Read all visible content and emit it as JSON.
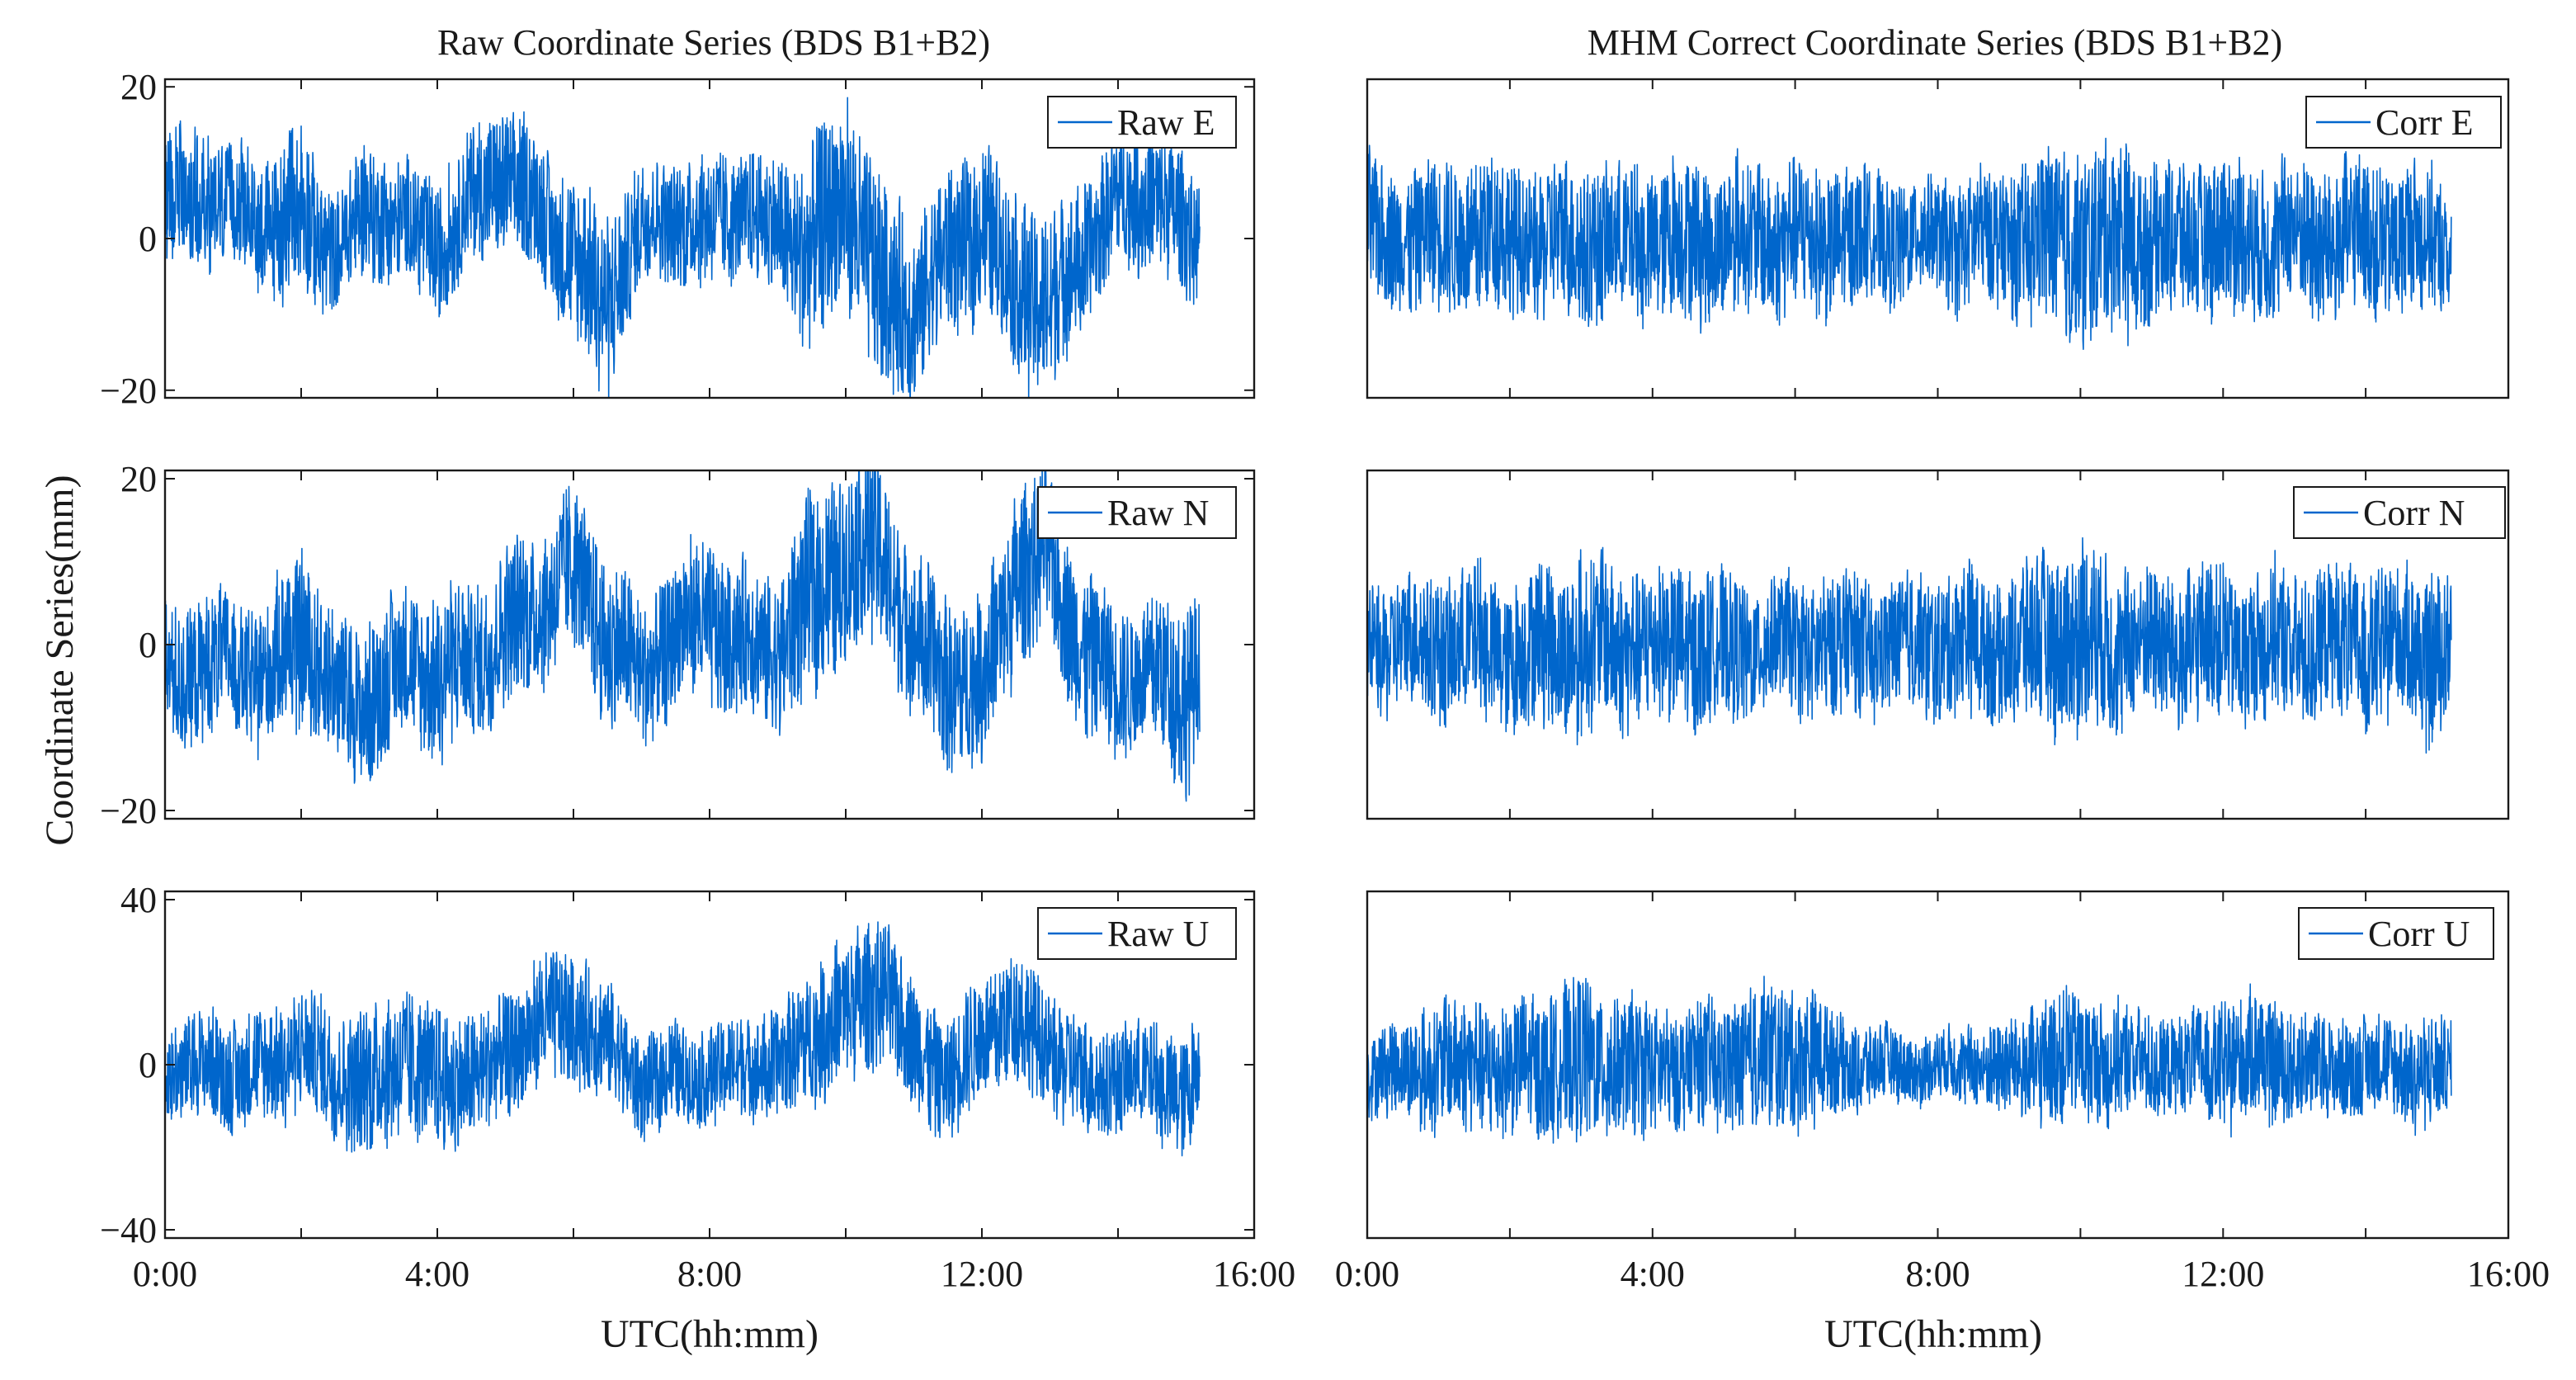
{
  "figure": {
    "ylabel": "Coordinate Series(mm)",
    "xlabel": "UTC(hh:mm)",
    "x_ticks": [
      "0:00",
      "4:00",
      "8:00",
      "12:00",
      "16:00"
    ]
  },
  "chart_data": [
    {
      "type": "line",
      "title": "Raw Coordinate Series (BDS B1+B2)",
      "xlabel": "",
      "ylabel": "",
      "xlim": [
        0,
        16
      ],
      "ylim": [
        -21,
        21
      ],
      "yticks": [
        -20,
        0,
        20
      ],
      "ytick_labels": [
        "−20",
        "0",
        "20"
      ],
      "grid": false,
      "legend_position": "top-right",
      "series": [
        {
          "name": "Raw E",
          "color": "#0066cc",
          "x_hours": [
            0.0,
            0.5,
            1.0,
            1.5,
            2.0,
            2.5,
            3.0,
            3.5,
            4.0,
            4.5,
            5.0,
            5.5,
            6.0,
            6.5,
            7.0,
            7.5,
            8.0,
            8.5,
            9.0,
            9.5,
            10.0,
            10.5,
            11.0,
            11.5,
            12.0,
            12.5,
            13.0,
            13.5,
            14.0,
            14.5,
            15.0,
            15.2
          ],
          "y_mid": [
            5,
            6,
            4,
            2,
            3,
            -2,
            4,
            2,
            -1,
            5,
            8,
            4,
            -3,
            -9,
            2,
            3,
            2,
            4,
            1,
            -2,
            5,
            -6,
            -10,
            -2,
            2,
            -6,
            -9,
            -2,
            5,
            6,
            1,
            0
          ],
          "y_spread": [
            8,
            10,
            8,
            9,
            12,
            8,
            9,
            8,
            9,
            9,
            10,
            9,
            11,
            12,
            8,
            8,
            9,
            8,
            9,
            14,
            14,
            14,
            12,
            11,
            11,
            12,
            13,
            10,
            9,
            10,
            9,
            8
          ]
        }
      ]
    },
    {
      "type": "line",
      "title": "MHM Correct Coordinate Series (BDS B1+B2)",
      "xlabel": "",
      "ylabel": "",
      "xlim": [
        0,
        16
      ],
      "ylim": [
        -21,
        21
      ],
      "yticks": [],
      "grid": false,
      "legend_position": "top-right",
      "series": [
        {
          "name": "Corr E",
          "color": "#0066cc",
          "x_hours": [
            0.0,
            0.5,
            1.0,
            1.5,
            2.0,
            2.5,
            3.0,
            3.5,
            4.0,
            4.5,
            5.0,
            5.5,
            6.0,
            6.5,
            7.0,
            7.5,
            8.0,
            8.5,
            9.0,
            9.5,
            10.0,
            10.5,
            11.0,
            11.5,
            12.0,
            12.5,
            13.0,
            13.5,
            14.0,
            14.5,
            15.0,
            15.2
          ],
          "y_mid": [
            1,
            0,
            0,
            1,
            0,
            -1,
            0,
            -1,
            0,
            0,
            0,
            0,
            0,
            0,
            0,
            0,
            0,
            0,
            0,
            0,
            -1,
            0,
            0,
            0,
            0,
            0,
            0,
            0,
            0,
            0,
            0,
            -1
          ],
          "y_spread": [
            10,
            9,
            10,
            11,
            10,
            10,
            11,
            10,
            10,
            11,
            10,
            10,
            10,
            10,
            9,
            8,
            8,
            9,
            9,
            12,
            13,
            13,
            11,
            10,
            11,
            10,
            10,
            11,
            10,
            10,
            9,
            8
          ]
        }
      ]
    },
    {
      "type": "line",
      "title": "",
      "xlabel": "",
      "ylabel": "",
      "xlim": [
        0,
        16
      ],
      "ylim": [
        -21,
        21
      ],
      "yticks": [
        -20,
        0,
        20
      ],
      "ytick_labels": [
        "−20",
        "0",
        "20"
      ],
      "grid": false,
      "legend_position": "top-right",
      "series": [
        {
          "name": "Raw N",
          "color": "#0066cc",
          "x_hours": [
            0.0,
            0.5,
            1.0,
            1.5,
            2.0,
            2.5,
            3.0,
            3.5,
            4.0,
            4.5,
            5.0,
            5.5,
            6.0,
            6.5,
            7.0,
            7.5,
            8.0,
            8.5,
            9.0,
            9.5,
            10.0,
            10.5,
            11.0,
            11.5,
            12.0,
            12.5,
            13.0,
            13.5,
            14.0,
            14.5,
            15.0,
            15.2
          ],
          "y_mid": [
            -4,
            -3,
            -2,
            -4,
            2,
            -6,
            -7,
            -2,
            -4,
            -2,
            2,
            5,
            9,
            1,
            -4,
            1,
            3,
            0,
            -1,
            6,
            10,
            12,
            0,
            -4,
            -5,
            8,
            11,
            -2,
            -4,
            -3,
            -6,
            -3
          ],
          "y_spread": [
            8,
            9,
            8,
            9,
            11,
            9,
            10,
            9,
            10,
            9,
            10,
            9,
            10,
            10,
            9,
            9,
            10,
            9,
            10,
            12,
            12,
            12,
            10,
            11,
            10,
            11,
            10,
            10,
            9,
            9,
            12,
            9
          ]
        }
      ]
    },
    {
      "type": "line",
      "title": "",
      "xlabel": "",
      "ylabel": "",
      "xlim": [
        0,
        16
      ],
      "ylim": [
        -21,
        21
      ],
      "yticks": [],
      "grid": false,
      "legend_position": "top-right",
      "series": [
        {
          "name": "Corr N",
          "color": "#0066cc",
          "x_hours": [
            0.0,
            0.5,
            1.0,
            1.5,
            2.0,
            2.5,
            3.0,
            3.5,
            4.0,
            4.5,
            5.0,
            5.5,
            6.0,
            6.5,
            7.0,
            7.5,
            8.0,
            8.5,
            9.0,
            9.5,
            10.0,
            10.5,
            11.0,
            11.5,
            12.0,
            12.5,
            13.0,
            13.5,
            14.0,
            14.5,
            15.0,
            15.2
          ],
          "y_mid": [
            0,
            0,
            0,
            0,
            -1,
            0,
            0,
            0,
            0,
            0,
            -1,
            0,
            0,
            0,
            0,
            0,
            0,
            0,
            0,
            0,
            1,
            0,
            0,
            0,
            0,
            0,
            0,
            0,
            0,
            0,
            -1,
            0
          ],
          "y_spread": [
            8,
            8,
            9,
            9,
            9,
            10,
            11,
            10,
            9,
            10,
            9,
            8,
            8,
            9,
            8,
            8,
            9,
            9,
            9,
            11,
            12,
            10,
            9,
            10,
            9,
            9,
            9,
            9,
            10,
            9,
            11,
            8
          ]
        }
      ]
    },
    {
      "type": "line",
      "title": "",
      "xlabel": "",
      "ylabel": "",
      "xlim": [
        0,
        16
      ],
      "ylim": [
        -42,
        42
      ],
      "yticks": [
        -40,
        0,
        40
      ],
      "ytick_labels": [
        "−40",
        "0",
        "40"
      ],
      "grid": false,
      "legend_position": "top-right",
      "series": [
        {
          "name": "Raw U",
          "color": "#0066cc",
          "x_hours": [
            0.0,
            0.5,
            1.0,
            1.5,
            2.0,
            2.5,
            3.0,
            3.5,
            4.0,
            4.5,
            5.0,
            5.5,
            6.0,
            6.5,
            7.0,
            7.5,
            8.0,
            8.5,
            9.0,
            9.5,
            10.0,
            10.5,
            11.0,
            11.5,
            12.0,
            12.5,
            13.0,
            13.5,
            14.0,
            14.5,
            15.0,
            15.2
          ],
          "y_mid": [
            -2,
            0,
            -2,
            -1,
            4,
            -2,
            -4,
            2,
            -4,
            -3,
            1,
            10,
            12,
            5,
            -5,
            -2,
            -3,
            0,
            -1,
            8,
            12,
            20,
            5,
            -5,
            8,
            12,
            3,
            -4,
            -3,
            -3,
            -8,
            0
          ],
          "y_spread": [
            12,
            13,
            14,
            14,
            14,
            16,
            18,
            18,
            17,
            16,
            15,
            16,
            16,
            15,
            12,
            12,
            12,
            13,
            14,
            17,
            18,
            18,
            16,
            15,
            16,
            16,
            15,
            14,
            13,
            13,
            16,
            12
          ]
        }
      ]
    },
    {
      "type": "line",
      "title": "",
      "xlabel": "",
      "ylabel": "",
      "xlim": [
        0,
        16
      ],
      "ylim": [
        -42,
        42
      ],
      "yticks": [],
      "grid": false,
      "legend_position": "top-right",
      "series": [
        {
          "name": "Corr U",
          "color": "#0066cc",
          "x_hours": [
            0.0,
            0.5,
            1.0,
            1.5,
            2.0,
            2.5,
            3.0,
            3.5,
            4.0,
            4.5,
            5.0,
            5.5,
            6.0,
            6.5,
            7.0,
            7.5,
            8.0,
            8.5,
            9.0,
            9.5,
            10.0,
            10.5,
            11.0,
            11.5,
            12.0,
            12.5,
            13.0,
            13.5,
            14.0,
            14.5,
            15.0,
            15.2
          ],
          "y_mid": [
            -2,
            -1,
            0,
            0,
            -1,
            0,
            1,
            0,
            -1,
            0,
            0,
            2,
            2,
            1,
            0,
            -1,
            0,
            0,
            -1,
            1,
            2,
            1,
            0,
            0,
            1,
            2,
            0,
            -1,
            0,
            -1,
            -3,
            0
          ],
          "y_spread": [
            10,
            12,
            16,
            16,
            16,
            18,
            20,
            18,
            16,
            14,
            16,
            18,
            18,
            14,
            10,
            9,
            8,
            10,
            12,
            16,
            16,
            14,
            12,
            12,
            16,
            16,
            14,
            12,
            12,
            12,
            14,
            10
          ]
        }
      ]
    }
  ]
}
